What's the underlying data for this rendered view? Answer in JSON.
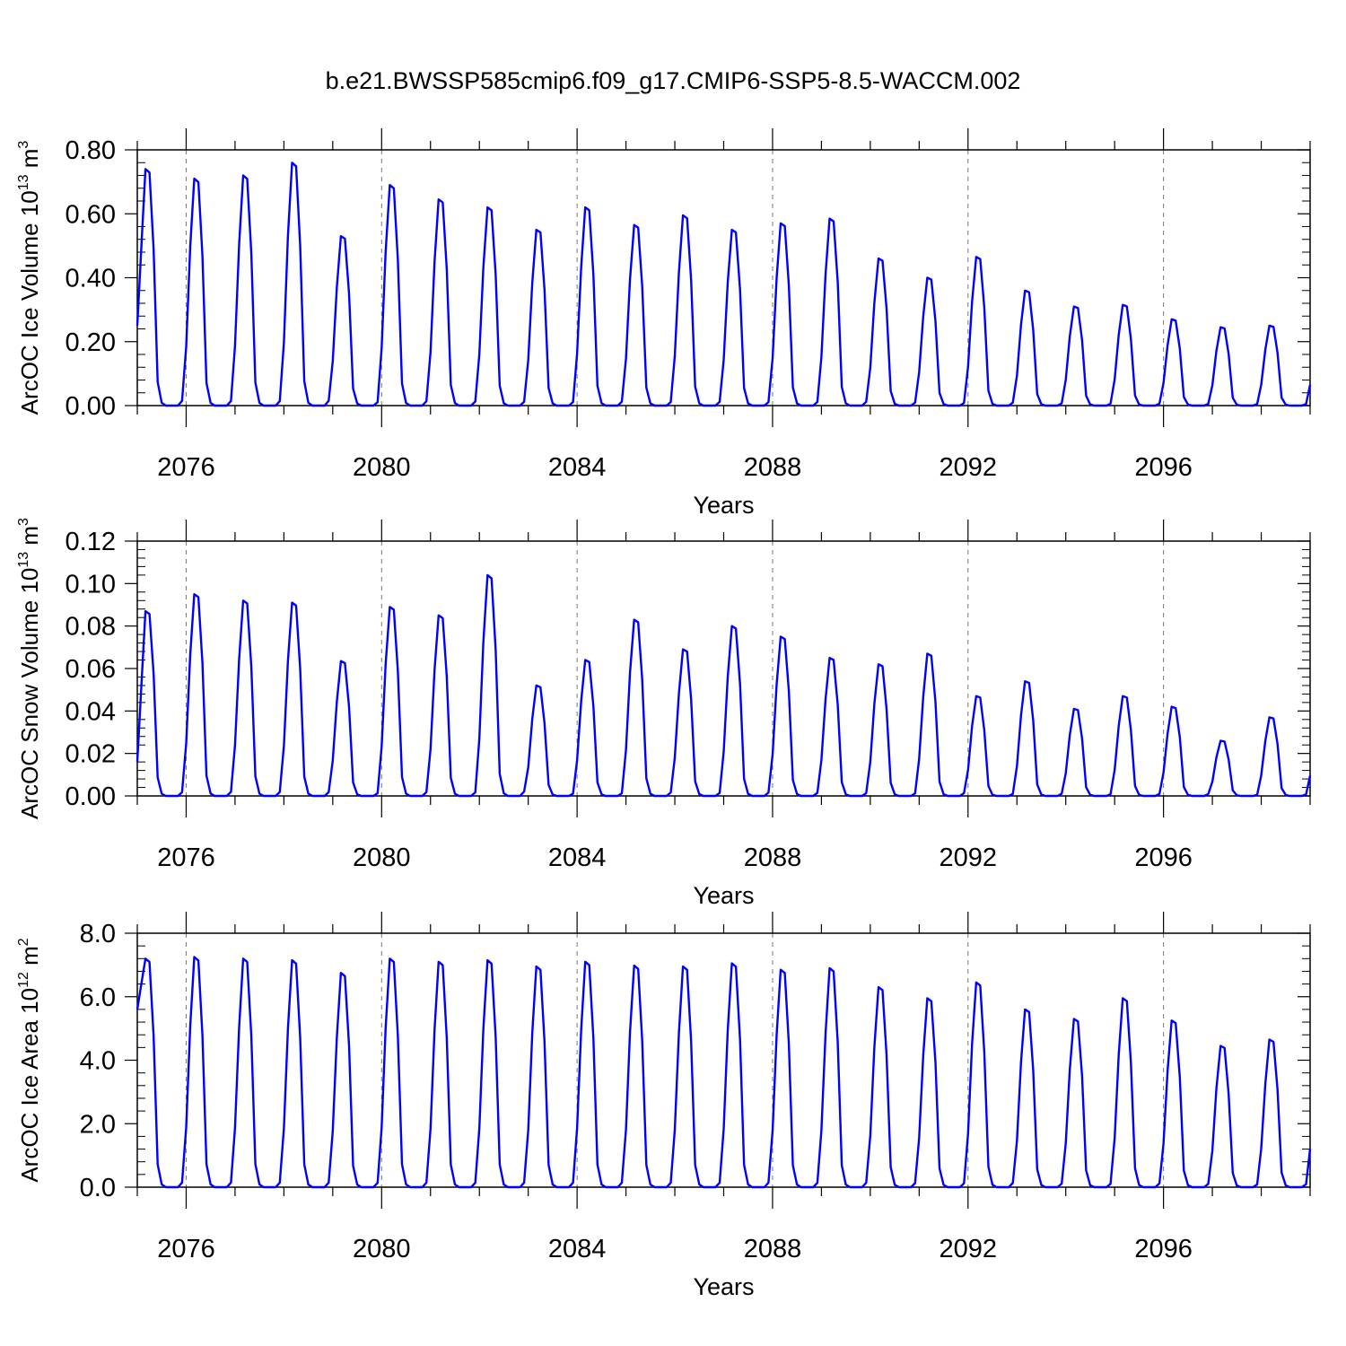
{
  "chart_data": {
    "title": "b.e21.BWSSP585cmip6.f09_g17.CMIP6-SSP5-8.5-WACCM.002",
    "panels": [
      {
        "type": "line",
        "name": "ice-volume",
        "ylabel": "ArcOC Ice Volume 10",
        "ylabel_exp": "13",
        "ylabel_unit": "m",
        "ylabel_unit_exp": "3",
        "xlabel": "Years",
        "xlim": [
          2075,
          2099
        ],
        "ylim": [
          0,
          0.8
        ],
        "yticks": [
          0,
          0.2,
          0.4,
          0.6,
          0.8
        ],
        "ytick_labels": [
          "0.00",
          "0.20",
          "0.40",
          "0.60",
          "0.80"
        ],
        "xticks": [
          2076,
          2080,
          2084,
          2088,
          2092,
          2096
        ],
        "xtick_labels": [
          "2076",
          "2080",
          "2084",
          "2088",
          "2092",
          "2096"
        ],
        "color": "#0000ff",
        "initial": 0.25,
        "peaks": [
          0.74,
          0.71,
          0.72,
          0.76,
          0.53,
          0.69,
          0.645,
          0.62,
          0.55,
          0.62,
          0.565,
          0.595,
          0.55,
          0.57,
          0.585,
          0.46,
          0.4,
          0.465,
          0.36,
          0.31,
          0.315,
          0.27,
          0.245,
          0.25
        ]
      },
      {
        "type": "line",
        "name": "snow-volume",
        "ylabel": "ArcOC Snow Volume 10",
        "ylabel_exp": "13",
        "ylabel_unit": "m",
        "ylabel_unit_exp": "3",
        "xlabel": "Years",
        "xlim": [
          2075,
          2099
        ],
        "ylim": [
          0,
          0.12
        ],
        "yticks": [
          0,
          0.02,
          0.04,
          0.06,
          0.08,
          0.1,
          0.12
        ],
        "ytick_labels": [
          "0.00",
          "0.02",
          "0.04",
          "0.06",
          "0.08",
          "0.10",
          "0.12"
        ],
        "xticks": [
          2076,
          2080,
          2084,
          2088,
          2092,
          2096
        ],
        "xtick_labels": [
          "2076",
          "2080",
          "2084",
          "2088",
          "2092",
          "2096"
        ],
        "color": "#0000ff",
        "initial": 0.016,
        "peaks": [
          0.087,
          0.095,
          0.092,
          0.091,
          0.0635,
          0.089,
          0.085,
          0.104,
          0.052,
          0.064,
          0.083,
          0.069,
          0.08,
          0.075,
          0.065,
          0.062,
          0.067,
          0.047,
          0.054,
          0.041,
          0.047,
          0.042,
          0.026,
          0.037
        ]
      },
      {
        "type": "line",
        "name": "ice-area",
        "ylabel": "ArcOC Ice Area 10",
        "ylabel_exp": "12",
        "ylabel_unit": "m",
        "ylabel_unit_exp": "2",
        "xlabel": "Years",
        "xlim": [
          2075,
          2099
        ],
        "ylim": [
          0,
          8
        ],
        "yticks": [
          0,
          2,
          4,
          6,
          8
        ],
        "ytick_labels": [
          "0.0",
          "2.0",
          "4.0",
          "6.0",
          "8.0"
        ],
        "xticks": [
          2076,
          2080,
          2084,
          2088,
          2092,
          2096
        ],
        "xtick_labels": [
          "2076",
          "2080",
          "2084",
          "2088",
          "2092",
          "2096"
        ],
        "color": "#0000ff",
        "initial": 5.6,
        "peaks": [
          7.2,
          7.25,
          7.2,
          7.15,
          6.75,
          7.2,
          7.1,
          7.15,
          6.95,
          7.1,
          6.98,
          6.95,
          7.05,
          6.85,
          6.9,
          6.3,
          5.95,
          6.45,
          5.6,
          5.3,
          5.95,
          5.25,
          4.45,
          4.65
        ]
      }
    ]
  }
}
